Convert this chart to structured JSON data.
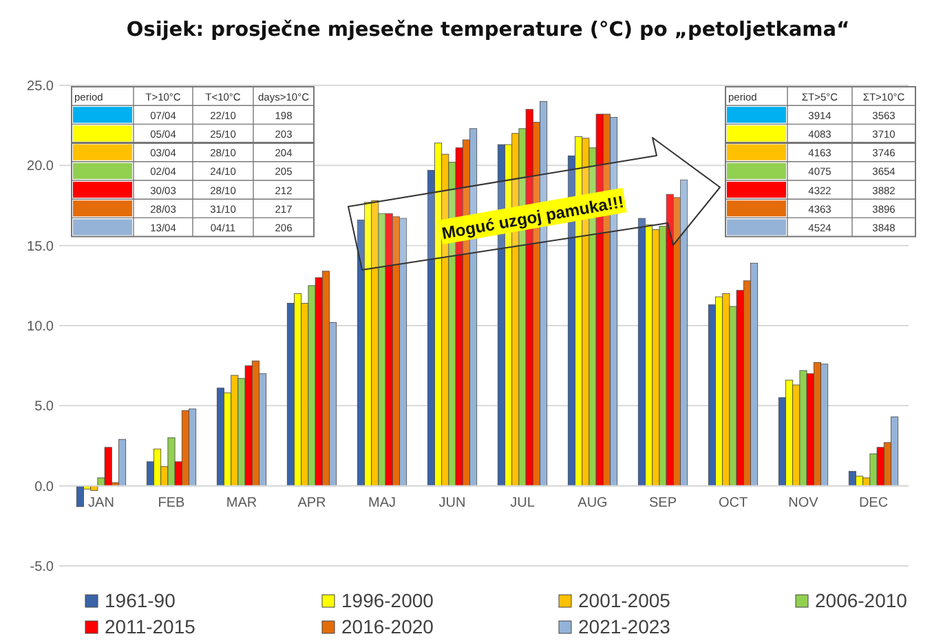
{
  "chart_data": {
    "type": "bar",
    "title": "Osijek: prosječne mjesečne temperature (°C) po „petoljetkama“",
    "categories": [
      "JAN",
      "FEB",
      "MAR",
      "APR",
      "MAJ",
      "JUN",
      "JUL",
      "AUG",
      "SEP",
      "OCT",
      "NOV",
      "DEC"
    ],
    "series": [
      {
        "name": "1961-90",
        "color": "#3b64a8",
        "values": [
          -1.3,
          1.5,
          6.1,
          11.4,
          16.6,
          19.7,
          21.3,
          20.6,
          16.7,
          11.3,
          5.5,
          0.9
        ]
      },
      {
        "name": "1996-2000",
        "color": "#ffff00",
        "values": [
          -0.2,
          2.3,
          5.8,
          12.0,
          17.7,
          21.4,
          21.3,
          21.8,
          16.3,
          11.8,
          6.6,
          0.6
        ]
      },
      {
        "name": "2001-2005",
        "color": "#ffc000",
        "values": [
          -0.3,
          1.2,
          6.9,
          11.4,
          17.8,
          20.7,
          22.0,
          21.7,
          16.0,
          12.0,
          6.3,
          0.5
        ]
      },
      {
        "name": "2006-2010",
        "color": "#92d050",
        "values": [
          0.5,
          3.0,
          6.7,
          12.5,
          17.0,
          20.2,
          22.3,
          21.1,
          16.2,
          11.2,
          7.2,
          2.0
        ]
      },
      {
        "name": "2011-2015",
        "color": "#ff0000",
        "values": [
          2.4,
          1.5,
          7.5,
          13.0,
          17.0,
          21.1,
          23.5,
          23.2,
          18.2,
          12.2,
          7.0,
          2.4
        ]
      },
      {
        "name": "2016-2020",
        "color": "#e46c0a",
        "values": [
          0.2,
          4.7,
          7.8,
          13.4,
          16.8,
          21.6,
          22.7,
          23.2,
          18.0,
          12.8,
          7.7,
          2.7
        ]
      },
      {
        "name": "2021-2023",
        "color": "#95b3d7",
        "values": [
          2.9,
          4.8,
          7.0,
          10.2,
          16.7,
          22.3,
          24.0,
          23.0,
          19.1,
          13.9,
          7.6,
          4.3
        ]
      }
    ],
    "ylim": [
      -5,
      25
    ],
    "yticks": [
      {
        "value": -5,
        "label": "-5.0"
      },
      {
        "value": 0,
        "label": "0.0"
      },
      {
        "value": 5,
        "label": "5.0"
      },
      {
        "value": 10,
        "label": "10.0"
      },
      {
        "value": 15,
        "label": "15.0"
      },
      {
        "value": 20,
        "label": "20.0"
      },
      {
        "value": 25,
        "label": "25.0"
      }
    ],
    "grid": "y",
    "legend": "bottom",
    "annotations": [
      "period",
      "T>10°C",
      "T<10°C",
      "days>10°C",
      "07/04",
      "22/10",
      "198",
      "05/04",
      "25/10",
      "203",
      "03/04",
      "28/10",
      "204",
      "02/04",
      "24/10",
      "205",
      "30/03",
      "28/10",
      "212",
      "28/03",
      "31/10",
      "217",
      "13/04",
      "04/11",
      "206",
      "period",
      "ΣT>5°C",
      "ΣT>10°C",
      "3914",
      "3563",
      "4083",
      "3710",
      "4163",
      "3746",
      "4075",
      "3654",
      "4322",
      "3882",
      "4363",
      "3896",
      "4524",
      "3848",
      "Moguć uzgoj pamuka!!!"
    ]
  }
}
